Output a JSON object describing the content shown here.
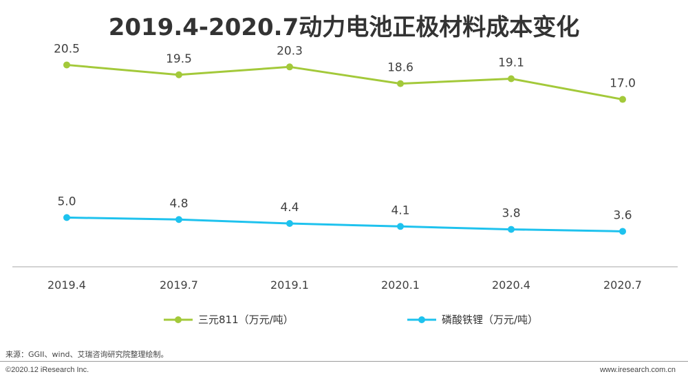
{
  "title": "2019.4-2020.7动力电池正极材料成本变化",
  "chart_data": {
    "type": "line",
    "title": "2019.4-2020.7动力电池正极材料成本变化",
    "categories": [
      "2019.4",
      "2019.7",
      "2019.1",
      "2020.1",
      "2020.4",
      "2020.7"
    ],
    "series": [
      {
        "name": "三元811（万元/吨）",
        "color": "#a3c93a",
        "values": [
          20.5,
          19.5,
          20.3,
          18.6,
          19.1,
          17.0
        ],
        "labels": [
          "20.5",
          "19.5",
          "20.3",
          "18.6",
          "19.1",
          "17.0"
        ]
      },
      {
        "name": "磷酸铁锂（万元/吨）",
        "color": "#1ec2ee",
        "values": [
          5.0,
          4.8,
          4.4,
          4.1,
          3.8,
          3.6
        ],
        "labels": [
          "5.0",
          "4.8",
          "4.4",
          "4.1",
          "3.8",
          "3.6"
        ]
      }
    ],
    "xlabel": "",
    "ylabel": "",
    "ylim": [
      0,
      25
    ],
    "grid": false,
    "legend": "bottom"
  },
  "source": "来源：GGII、wind、艾瑞咨询研究院整理绘制。",
  "copyright": "©2020.12 iResearch Inc.",
  "website": "www.iresearch.com.cn"
}
